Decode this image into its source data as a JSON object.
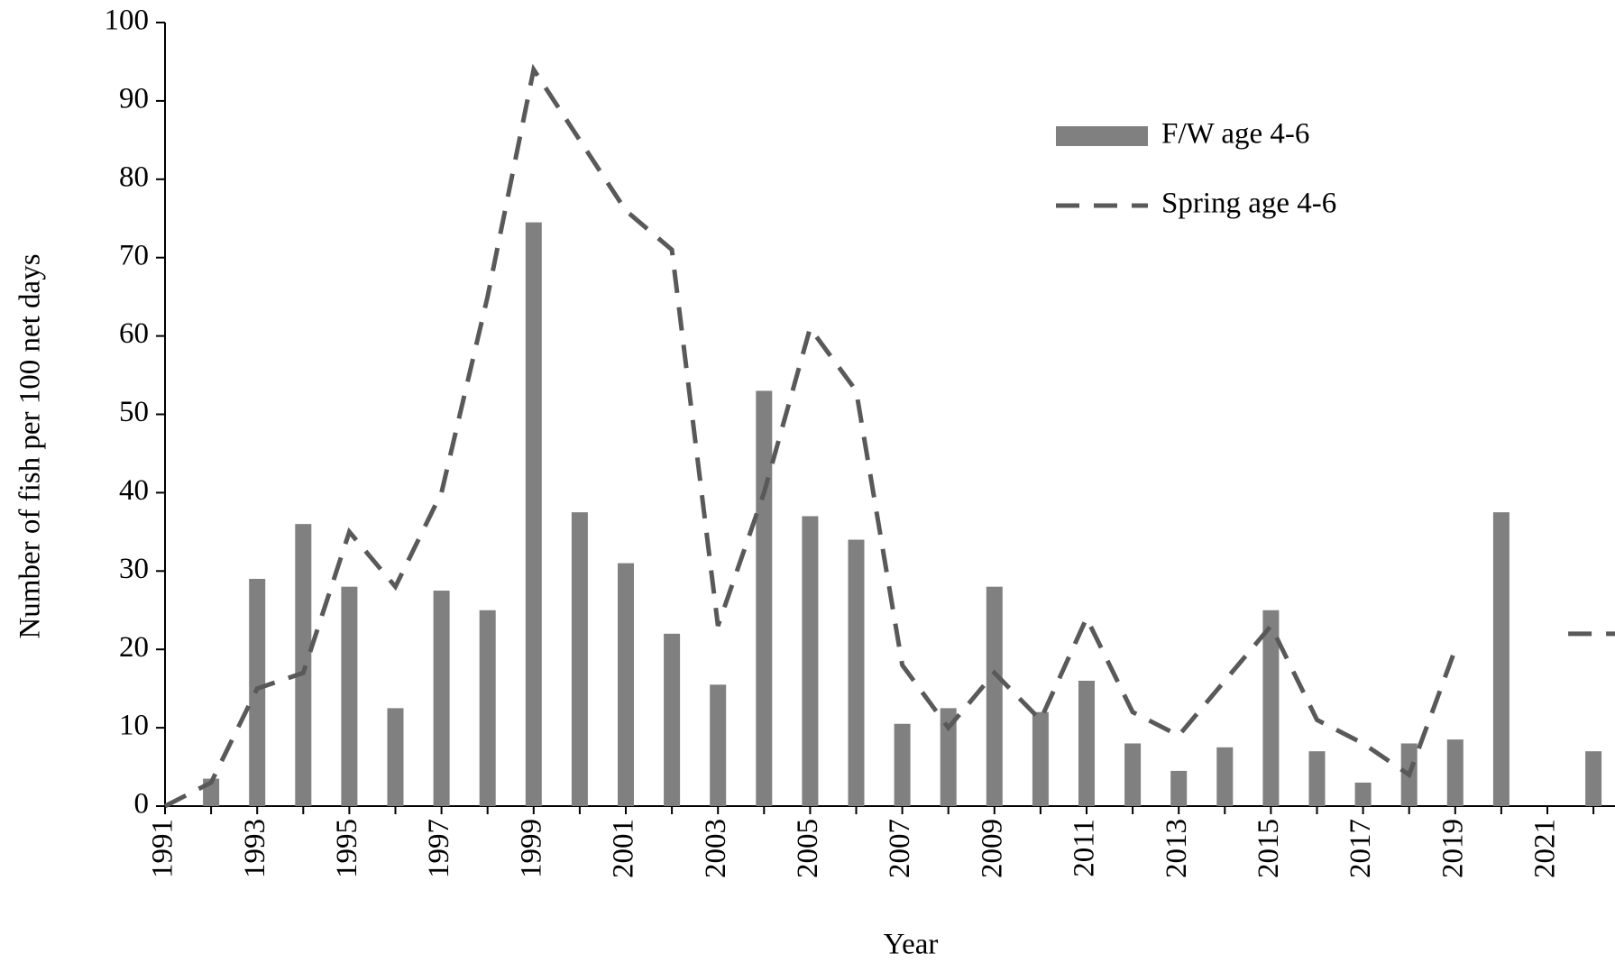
{
  "chart_data": {
    "type": "bar_line",
    "x_label": "Year",
    "y_label": "Number of fish per 100 net days",
    "categories": [
      "1991",
      null,
      "1993",
      null,
      "1995",
      null,
      "1997",
      null,
      "1999",
      null,
      "2001",
      null,
      "2003",
      null,
      "2005",
      null,
      "2007",
      null,
      "2009",
      null,
      "2011",
      null,
      "2013",
      null,
      "2015",
      null,
      "2017",
      null,
      "2019",
      null,
      "2021",
      null
    ],
    "series": [
      {
        "name": "F/W age 4-6",
        "kind": "bar",
        "color": "#808080",
        "values": [
          0,
          3.5,
          29,
          36,
          28,
          12.5,
          27.5,
          25,
          74.5,
          37.5,
          31,
          22,
          15.5,
          53,
          37,
          34,
          10.5,
          12.5,
          28,
          12,
          16,
          8,
          4.5,
          7.5,
          25,
          7,
          3,
          8,
          8.5,
          37.5,
          null,
          7
        ]
      },
      {
        "name": "Spring age 4-6",
        "kind": "line",
        "color": "#595959",
        "dashed": true,
        "values": [
          0,
          3,
          15,
          17,
          35,
          28,
          40,
          65,
          94,
          85,
          76,
          71,
          23,
          40,
          61,
          53,
          18,
          10,
          17,
          11,
          24,
          12,
          9,
          16,
          23,
          11,
          8,
          4,
          20,
          null,
          null,
          22
        ]
      }
    ],
    "ylim": [
      0,
      100
    ],
    "yticks": [
      0,
      10,
      20,
      30,
      40,
      50,
      60,
      70,
      80,
      90,
      100
    ],
    "grid": false,
    "legend": "upper right"
  }
}
